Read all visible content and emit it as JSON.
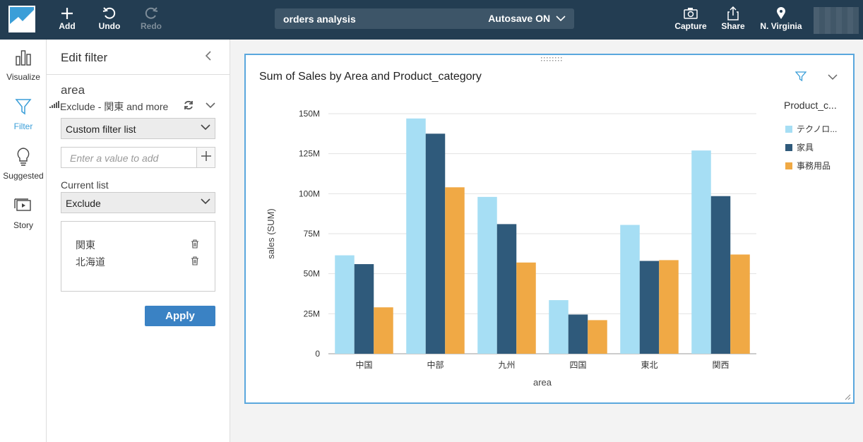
{
  "topbar": {
    "add_label": "Add",
    "undo_label": "Undo",
    "redo_label": "Redo",
    "analysis_name": "orders analysis",
    "autosave_label": "Autosave ON",
    "capture_label": "Capture",
    "share_label": "Share",
    "region_label": "N. Virginia"
  },
  "leftnav": {
    "items": [
      {
        "label": "Visualize",
        "icon": "bar-chart-icon"
      },
      {
        "label": "Filter",
        "icon": "funnel-icon"
      },
      {
        "label": "Suggested",
        "icon": "lightbulb-icon"
      },
      {
        "label": "Story",
        "icon": "story-icon"
      }
    ],
    "active": "Filter"
  },
  "filter_panel": {
    "title": "Edit filter",
    "field_name": "area",
    "summary": "Exclude - 関東 and more",
    "filter_type": "Custom filter list",
    "value_placeholder": "Enter a value to add",
    "current_list_label": "Current list",
    "mode": "Exclude",
    "values": [
      "関東",
      "北海道"
    ],
    "apply_label": "Apply"
  },
  "visual": {
    "title": "Sum of Sales by Area and Product_category"
  },
  "colors": {
    "accent": "#3a9ed8",
    "series_light": "#a6def4",
    "series_dark": "#2f5a7b",
    "series_orange": "#f0a945"
  },
  "chart_data": {
    "type": "bar",
    "title": "Sum of Sales by Area and Product_category",
    "xlabel": "area",
    "ylabel": "sales (SUM)",
    "categories": [
      "中国",
      "中部",
      "九州",
      "四国",
      "東北",
      "関西"
    ],
    "series": [
      {
        "name": "テクノロ...",
        "color": "#a6def4",
        "values": [
          61.5,
          147,
          98,
          33.5,
          80.5,
          127
        ]
      },
      {
        "name": "家具",
        "color": "#2f5a7b",
        "values": [
          56,
          137.5,
          81,
          24.5,
          58,
          98.5
        ]
      },
      {
        "name": "事務用品",
        "color": "#f0a945",
        "values": [
          29,
          104,
          57,
          21,
          58.5,
          62
        ]
      }
    ],
    "ylim": [
      0,
      150
    ],
    "yticks": [
      "0",
      "25M",
      "50M",
      "75M",
      "100M",
      "125M",
      "150M"
    ],
    "legend_title": "Product_c...",
    "legend_position": "right",
    "grid": true
  }
}
